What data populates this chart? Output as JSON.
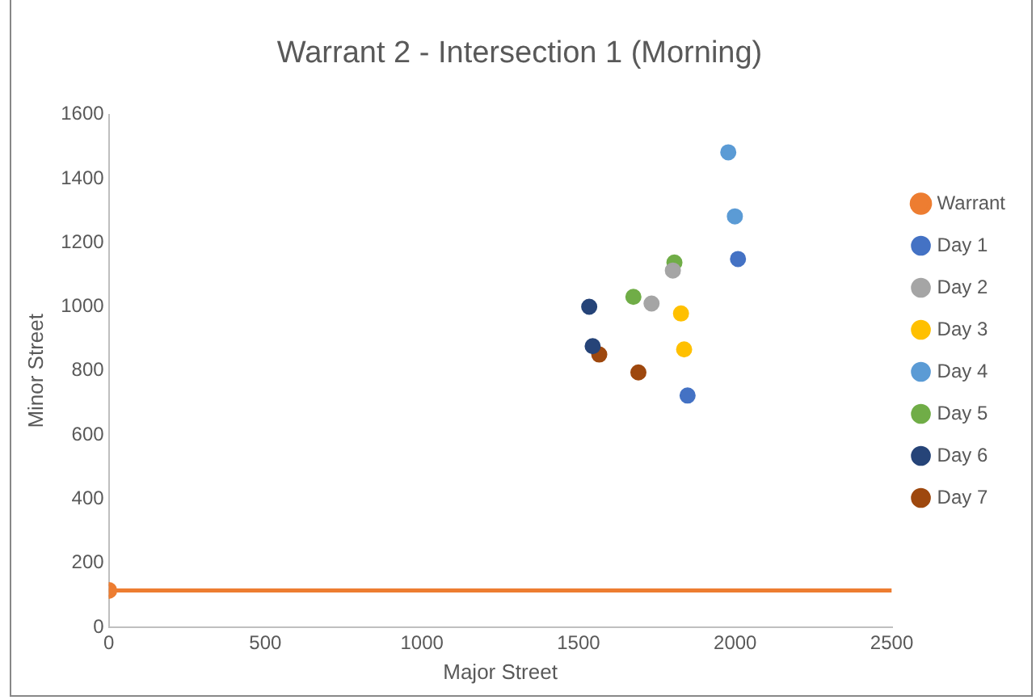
{
  "chart_data": {
    "type": "scatter",
    "title": "Warrant 2 - Intersection 1 (Morning)",
    "xlabel": "Major Street",
    "ylabel": "Minor Street",
    "xlim": [
      0,
      2500
    ],
    "xticks": [
      0,
      500,
      1000,
      1500,
      2000,
      2500
    ],
    "ylim": [
      0,
      1600
    ],
    "yticks": [
      0,
      200,
      400,
      600,
      800,
      1000,
      1200,
      1400,
      1600
    ],
    "grid": false,
    "legend": "right",
    "marker": "circle",
    "series": [
      {
        "name": "Warrant",
        "type": "line",
        "line_style": "solid",
        "color": "#ed7d31",
        "x": [
          0,
          2500
        ],
        "values": [
          115,
          115
        ]
      },
      {
        "name": "Day 1",
        "color": "#4472c4",
        "x": [
          2009,
          1848
        ],
        "values": [
          1149,
          723
        ]
      },
      {
        "name": "Day 2",
        "color": "#a5a5a5",
        "x": [
          1801,
          1733
        ],
        "values": [
          1113,
          1010
        ]
      },
      {
        "name": "Day 3",
        "color": "#ffc000",
        "x": [
          1827,
          1837
        ],
        "values": [
          979,
          867
        ]
      },
      {
        "name": "Day 4",
        "color": "#5b9bd5",
        "x": [
          1978,
          1999
        ],
        "values": [
          1482,
          1282
        ]
      },
      {
        "name": "Day 5",
        "color": "#70ad47",
        "x": [
          1806,
          1675
        ],
        "values": [
          1138,
          1031
        ]
      },
      {
        "name": "Day 6",
        "color": "#264478",
        "x": [
          1534,
          1545
        ],
        "values": [
          1000,
          877
        ]
      },
      {
        "name": "Day 7",
        "color": "#9e480e",
        "x": [
          1566,
          1691
        ],
        "values": [
          851,
          795
        ]
      }
    ]
  }
}
